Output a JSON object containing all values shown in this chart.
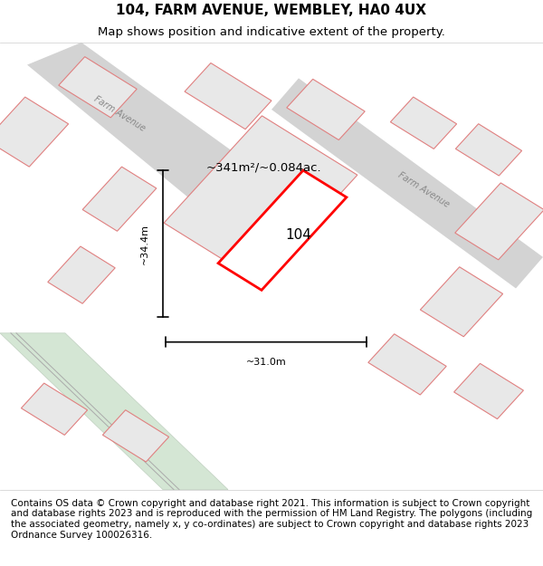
{
  "title": "104, FARM AVENUE, WEMBLEY, HA0 4UX",
  "subtitle": "Map shows position and indicative extent of the property.",
  "footer": "Contains OS data © Crown copyright and database right 2021. This information is subject to Crown copyright and database rights 2023 and is reproduced with the permission of HM Land Registry. The polygons (including the associated geometry, namely x, y co-ordinates) are subject to Crown copyright and database rights 2023 Ordnance Survey 100026316.",
  "bg_color": "#f5f5f5",
  "map_bg": "#ffffff",
  "road_color": "#d3d3d3",
  "building_fill": "#e8e8e8",
  "building_edge": "#e08080",
  "highlight_fill": "#ffffff",
  "highlight_edge": "#ff0000",
  "green_fill": "#d4e6d4",
  "green_edge": "#c0d0c0",
  "label_104": "104",
  "area_label": "~341m²/~0.084ac.",
  "dim_width": "~31.0m",
  "dim_height": "~34.4m",
  "road_label1": "Farm Avenue",
  "road_label2": "Farm Avenue",
  "title_fontsize": 11,
  "subtitle_fontsize": 9.5,
  "footer_fontsize": 7.5
}
